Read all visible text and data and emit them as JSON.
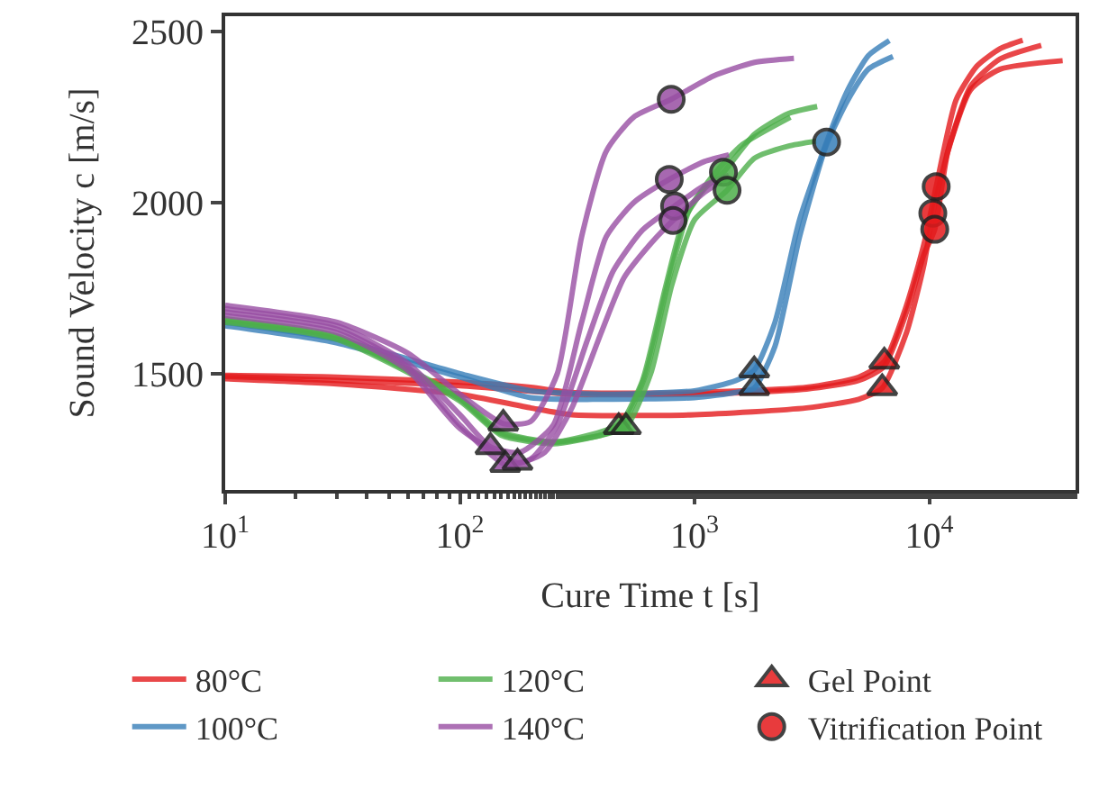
{
  "chart_data": {
    "type": "line",
    "xlabel": "Cure Time t [s]",
    "ylabel": "Sound Velocity c [m/s]",
    "log": "x",
    "legend": "bottom",
    "xlim": [
      10,
      42000
    ],
    "xticks": [
      {
        "value": 10,
        "label": "10$^{1}$"
      },
      {
        "value": 100,
        "label": "10$^{2}$"
      },
      {
        "value": 1000,
        "label": "10$^{3}$"
      },
      {
        "value": 10000,
        "label": "10$^{4}$"
      }
    ],
    "ylim": [
      1160,
      2545
    ],
    "yticks": [
      1500,
      2000,
      2500
    ],
    "series": [
      {
        "name": "80°C",
        "color": "#e41a1c",
        "x": [
          10,
          30,
          100,
          200,
          300,
          1000,
          3000,
          5000,
          6430,
          8000,
          9500,
          10700,
          13000,
          16000,
          20000,
          25000
        ],
        "values": [
          1495,
          1490,
          1475,
          1460,
          1445,
          1445,
          1460,
          1490,
          1536,
          1700,
          1880,
          2047,
          2300,
          2400,
          2450,
          2475
        ]
      },
      {
        "color": "#e41a1c",
        "x": [
          10,
          30,
          100,
          200,
          300,
          1000,
          3000,
          5000,
          6300,
          8000,
          9500,
          10350,
          12000,
          15000,
          20000,
          37000
        ],
        "values": [
          1485,
          1470,
          1440,
          1400,
          1380,
          1380,
          1400,
          1425,
          1458,
          1620,
          1820,
          1969,
          2150,
          2330,
          2390,
          2415
        ]
      },
      {
        "color": "#e41a1c",
        "x": [
          10,
          100,
          300,
          1000,
          3000,
          5000,
          6400,
          8000,
          9500,
          10550,
          12000,
          15000,
          20000,
          30000
        ],
        "values": [
          1492,
          1465,
          1440,
          1440,
          1455,
          1480,
          1520,
          1680,
          1850,
          1922,
          2150,
          2340,
          2420,
          2460
        ]
      },
      {
        "name": "100°C",
        "color": "#377eb8",
        "x": [
          10,
          30,
          100,
          200,
          400,
          1000,
          1500,
          1795,
          2200,
          2800,
          3650,
          4500,
          5500,
          6760
        ],
        "values": [
          1650,
          1600,
          1500,
          1450,
          1440,
          1450,
          1480,
          1510,
          1650,
          1950,
          2177,
          2330,
          2430,
          2474
        ]
      },
      {
        "color": "#377eb8",
        "x": [
          10,
          30,
          100,
          200,
          400,
          1000,
          1500,
          1795,
          2200,
          2800,
          3650,
          4500,
          5500,
          7000
        ],
        "values": [
          1640,
          1590,
          1490,
          1430,
          1425,
          1430,
          1445,
          1458,
          1580,
          1900,
          2170,
          2300,
          2390,
          2427
        ]
      },
      {
        "name": "120°C",
        "color": "#4daf4a",
        "x": [
          10,
          30,
          100,
          150,
          250,
          400,
          475,
          600,
          750,
          900,
          1100,
          1327,
          1800,
          2500,
          3330
        ],
        "values": [
          1660,
          1610,
          1430,
          1330,
          1300,
          1320,
          1344,
          1480,
          1750,
          1950,
          2040,
          2089,
          2200,
          2260,
          2281
        ]
      },
      {
        "color": "#4daf4a",
        "x": [
          10,
          30,
          100,
          150,
          250,
          400,
          510,
          650,
          800,
          1000,
          1375,
          1800,
          2500,
          3300
        ],
        "values": [
          1650,
          1600,
          1420,
          1320,
          1295,
          1320,
          1344,
          1500,
          1760,
          1950,
          2036,
          2130,
          2165,
          2180
        ]
      },
      {
        "color": "#4daf4a",
        "x": [
          10,
          30,
          100,
          150,
          250,
          400,
          500,
          620,
          780,
          950,
          1200,
          1600,
          2560
        ],
        "values": [
          1655,
          1605,
          1425,
          1325,
          1300,
          1330,
          1360,
          1500,
          1780,
          1980,
          2080,
          2170,
          2250
        ]
      },
      {
        "name": "140°C",
        "color": "#984ea3",
        "x": [
          10,
          30,
          60,
          100,
          153,
          200,
          260,
          330,
          420,
          550,
          795,
          1200,
          1800,
          2650
        ],
        "values": [
          1700,
          1650,
          1560,
          1440,
          1354,
          1360,
          1500,
          1900,
          2150,
          2250,
          2302,
          2370,
          2410,
          2422
        ]
      },
      {
        "color": "#984ea3",
        "x": [
          10,
          30,
          60,
          100,
          135,
          180,
          250,
          330,
          420,
          550,
          780,
          1100,
          1400
        ],
        "values": [
          1690,
          1640,
          1530,
          1380,
          1286,
          1270,
          1350,
          1650,
          1900,
          2000,
          2068,
          2120,
          2140
        ]
      },
      {
        "color": "#984ea3",
        "x": [
          10,
          30,
          60,
          100,
          156,
          200,
          260,
          350,
          450,
          600,
          822,
          1100,
          1400
        ],
        "values": [
          1680,
          1630,
          1520,
          1350,
          1234,
          1250,
          1350,
          1600,
          1800,
          1920,
          1990,
          2050,
          2080
        ]
      },
      {
        "color": "#984ea3",
        "x": [
          10,
          30,
          60,
          100,
          176,
          230,
          300,
          400,
          500,
          650,
          809,
          1100,
          1350
        ],
        "values": [
          1670,
          1620,
          1510,
          1340,
          1240,
          1270,
          1400,
          1620,
          1780,
          1880,
          1948,
          2030,
          2070
        ]
      },
      {
        "name": "Gel Point",
        "type": "scatter",
        "marker": "triangle",
        "x": [
          6430,
          6300,
          1795,
          1795,
          475,
          510,
          153,
          135,
          156,
          176
        ],
        "values": [
          1536,
          1458,
          1510,
          1458,
          1344,
          1344,
          1354,
          1286,
          1234,
          1240
        ],
        "colors": [
          "#e41a1c",
          "#e41a1c",
          "#377eb8",
          "#377eb8",
          "#4daf4a",
          "#4daf4a",
          "#984ea3",
          "#984ea3",
          "#984ea3",
          "#984ea3"
        ]
      },
      {
        "name": "Vitrification Point",
        "type": "scatter",
        "marker": "circle",
        "x": [
          10700,
          10350,
          10550,
          3650,
          1327,
          1375,
          795,
          780,
          822,
          809
        ],
        "values": [
          2047,
          1969,
          1922,
          2177,
          2089,
          2036,
          2302,
          2068,
          1990,
          1948
        ],
        "colors": [
          "#e41a1c",
          "#e41a1c",
          "#e41a1c",
          "#377eb8",
          "#4daf4a",
          "#4daf4a",
          "#984ea3",
          "#984ea3",
          "#984ea3",
          "#984ea3"
        ]
      }
    ]
  }
}
